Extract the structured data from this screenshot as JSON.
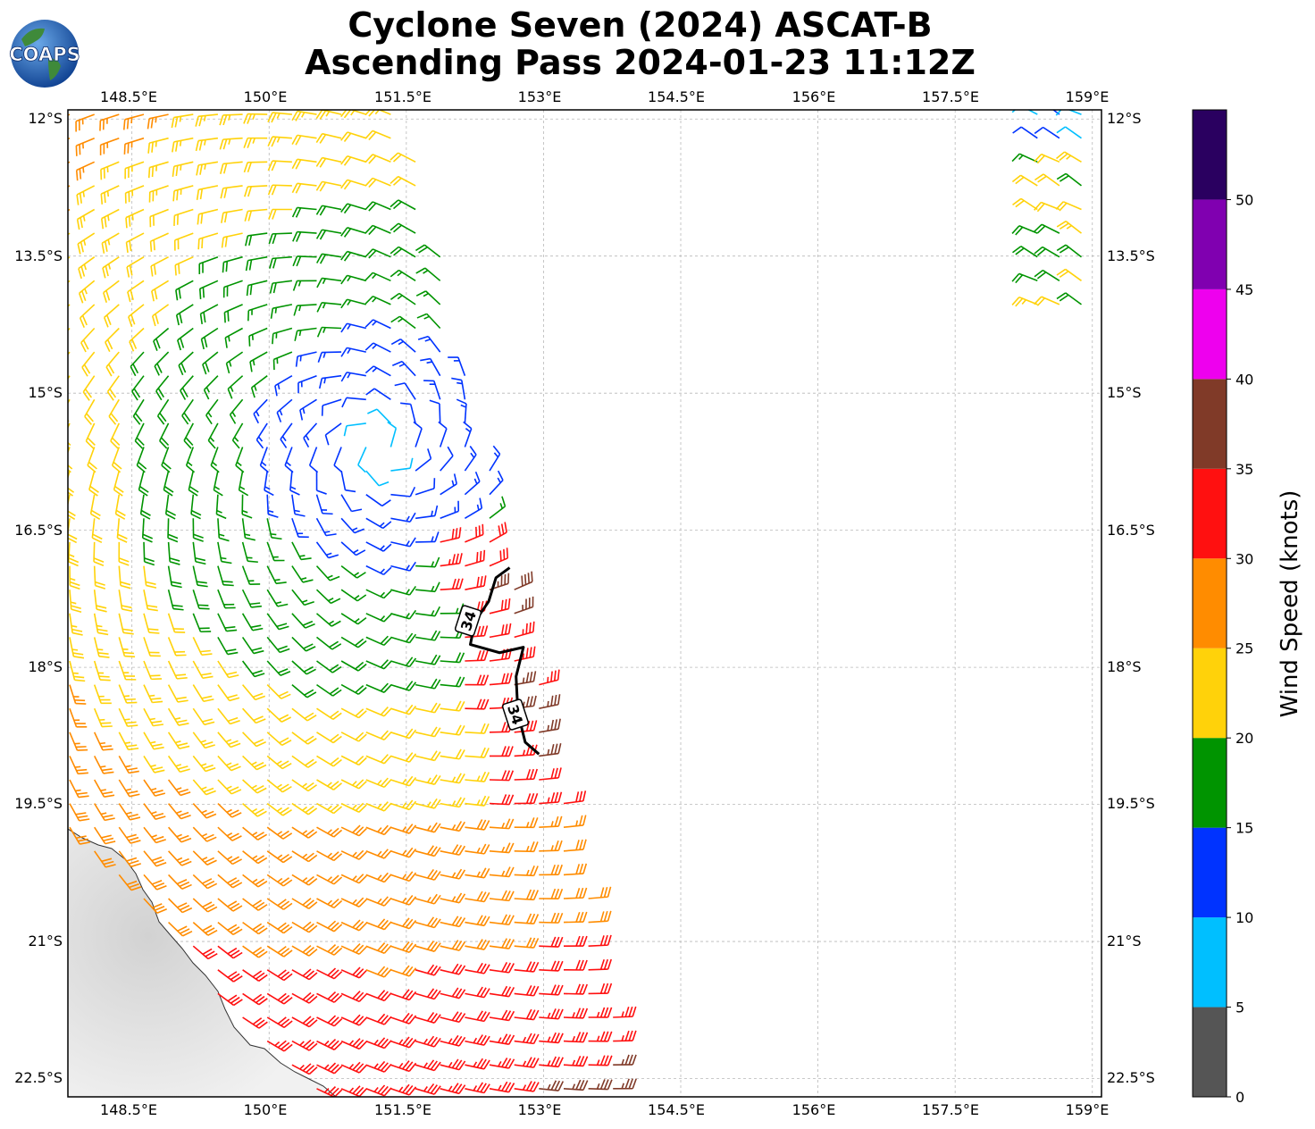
{
  "header": {
    "title_line1": "Cyclone Seven (2024) ASCAT-B",
    "title_line2": "Ascending Pass 2024-01-23 11:12Z",
    "logo_text": "COAPS"
  },
  "map": {
    "lon_range": [
      147.8,
      159.1
    ],
    "lat_range": [
      -22.7,
      -11.9
    ],
    "lon_ticks": [
      "148.5°E",
      "150°E",
      "151.5°E",
      "153°E",
      "154.5°E",
      "156°E",
      "157.5°E",
      "159°E"
    ],
    "lat_ticks": [
      "12°S",
      "13.5°S",
      "15°S",
      "16.5°S",
      "18°S",
      "19.5°S",
      "21°S",
      "22.5°S"
    ],
    "lon_values": [
      148.5,
      150.0,
      151.5,
      153.0,
      154.5,
      156.0,
      157.5,
      159.0
    ],
    "lat_values": [
      -12.0,
      -13.5,
      -15.0,
      -16.5,
      -18.0,
      -19.5,
      -21.0,
      -22.5
    ],
    "gridlines": true,
    "storm_center": {
      "lon": 151.2,
      "lat": -15.6
    },
    "contour_label": "34",
    "contour_points": [
      [
        152.63,
        -16.91
      ],
      [
        152.48,
        -17.02
      ],
      [
        152.4,
        -17.28
      ],
      [
        152.25,
        -17.5
      ],
      [
        152.2,
        -17.75
      ],
      [
        152.52,
        -17.84
      ],
      [
        152.78,
        -17.78
      ],
      [
        152.7,
        -18.1
      ],
      [
        152.72,
        -18.5
      ],
      [
        152.8,
        -18.82
      ],
      [
        152.95,
        -18.95
      ]
    ]
  },
  "colorbar": {
    "label": "Wind Speed (knots)",
    "ticks": [
      "0",
      "5",
      "10",
      "15",
      "20",
      "25",
      "30",
      "35",
      "40",
      "45",
      "50"
    ],
    "bins": [
      {
        "from": 0,
        "to": 5,
        "color": "#555555"
      },
      {
        "from": 5,
        "to": 10,
        "color": "#00bfff"
      },
      {
        "from": 10,
        "to": 15,
        "color": "#0033ff"
      },
      {
        "from": 15,
        "to": 20,
        "color": "#009400"
      },
      {
        "from": 20,
        "to": 25,
        "color": "#ffd20a"
      },
      {
        "from": 25,
        "to": 30,
        "color": "#ff8c00"
      },
      {
        "from": 30,
        "to": 35,
        "color": "#ff1010"
      },
      {
        "from": 35,
        "to": 40,
        "color": "#803a28"
      },
      {
        "from": 40,
        "to": 45,
        "color": "#ee00ee"
      },
      {
        "from": 45,
        "to": 50,
        "color": "#8000b0"
      },
      {
        "from": 50,
        "to": 55,
        "color": "#2a0060"
      }
    ]
  },
  "wind_field": {
    "swath_main": {
      "lon_west": 147.8,
      "lon_east_at_top": 151.5,
      "lon_east_at_bottom": 154.0
    },
    "swath_ne": {
      "lon_min": 158.3,
      "lon_max": 159.1,
      "lat_min": -14.1,
      "lat_max": -11.9
    },
    "inner_core_lat": [
      -17.0,
      -19.2
    ]
  }
}
